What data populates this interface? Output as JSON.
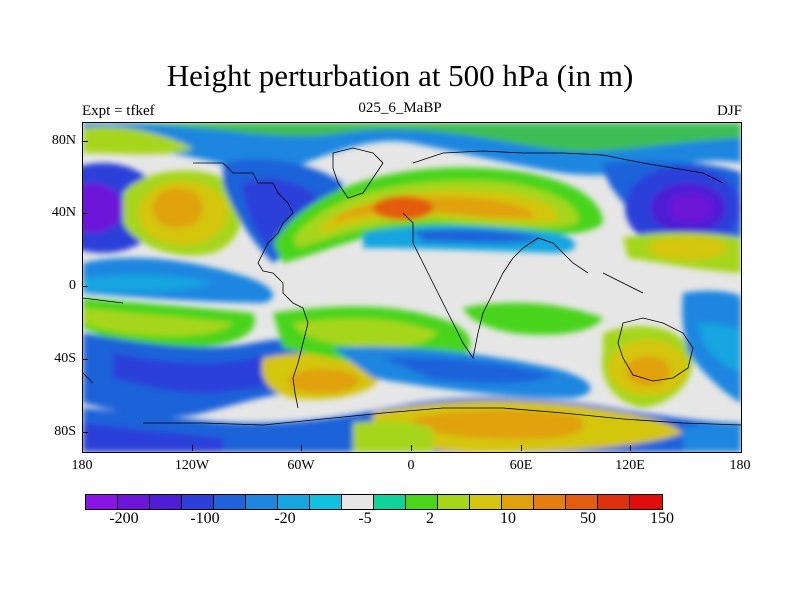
{
  "figure": {
    "title": "Height perturbation at 500 hPa (in m)",
    "left_label": "Expt = tfkef",
    "center_label": "025_6_MaBP",
    "right_label": "DJF"
  },
  "axes": {
    "lon_ticks": [
      "180",
      "120W",
      "60W",
      "0",
      "60E",
      "120E",
      "180"
    ],
    "lat_ticks": [
      "80N",
      "40N",
      "0",
      "40S",
      "80S"
    ],
    "lon_range": [
      -180,
      180
    ],
    "lat_range": [
      -90,
      90
    ]
  },
  "colorbar": {
    "colors": [
      "#8a13e6",
      "#6d14d9",
      "#4f1dd6",
      "#2c3fd9",
      "#1f62d9",
      "#1f86e0",
      "#16a5e0",
      "#12c1e0",
      "#e6e6e6",
      "#10d39a",
      "#4ad41a",
      "#a6d61a",
      "#d4c510",
      "#e0a10f",
      "#e57d0f",
      "#e35c10",
      "#df3010",
      "#e00d0d"
    ],
    "labels": [
      "-200",
      "-100",
      "-20",
      "-5",
      "2",
      "10",
      "50",
      "150"
    ]
  },
  "field": {
    "description_colors": "filled contour shading of height anomaly",
    "level_colors": {
      "neg_strong": "#6d14d9",
      "neg": "#1f62d9",
      "neg_weak": "#16a5e0",
      "zero": "#e6e6e6",
      "pos_weak": "#4ad41a",
      "pos": "#a6d61a",
      "pos_mid": "#d4c510",
      "pos_strong": "#e0a10f",
      "pos_max": "#e35c10"
    }
  }
}
